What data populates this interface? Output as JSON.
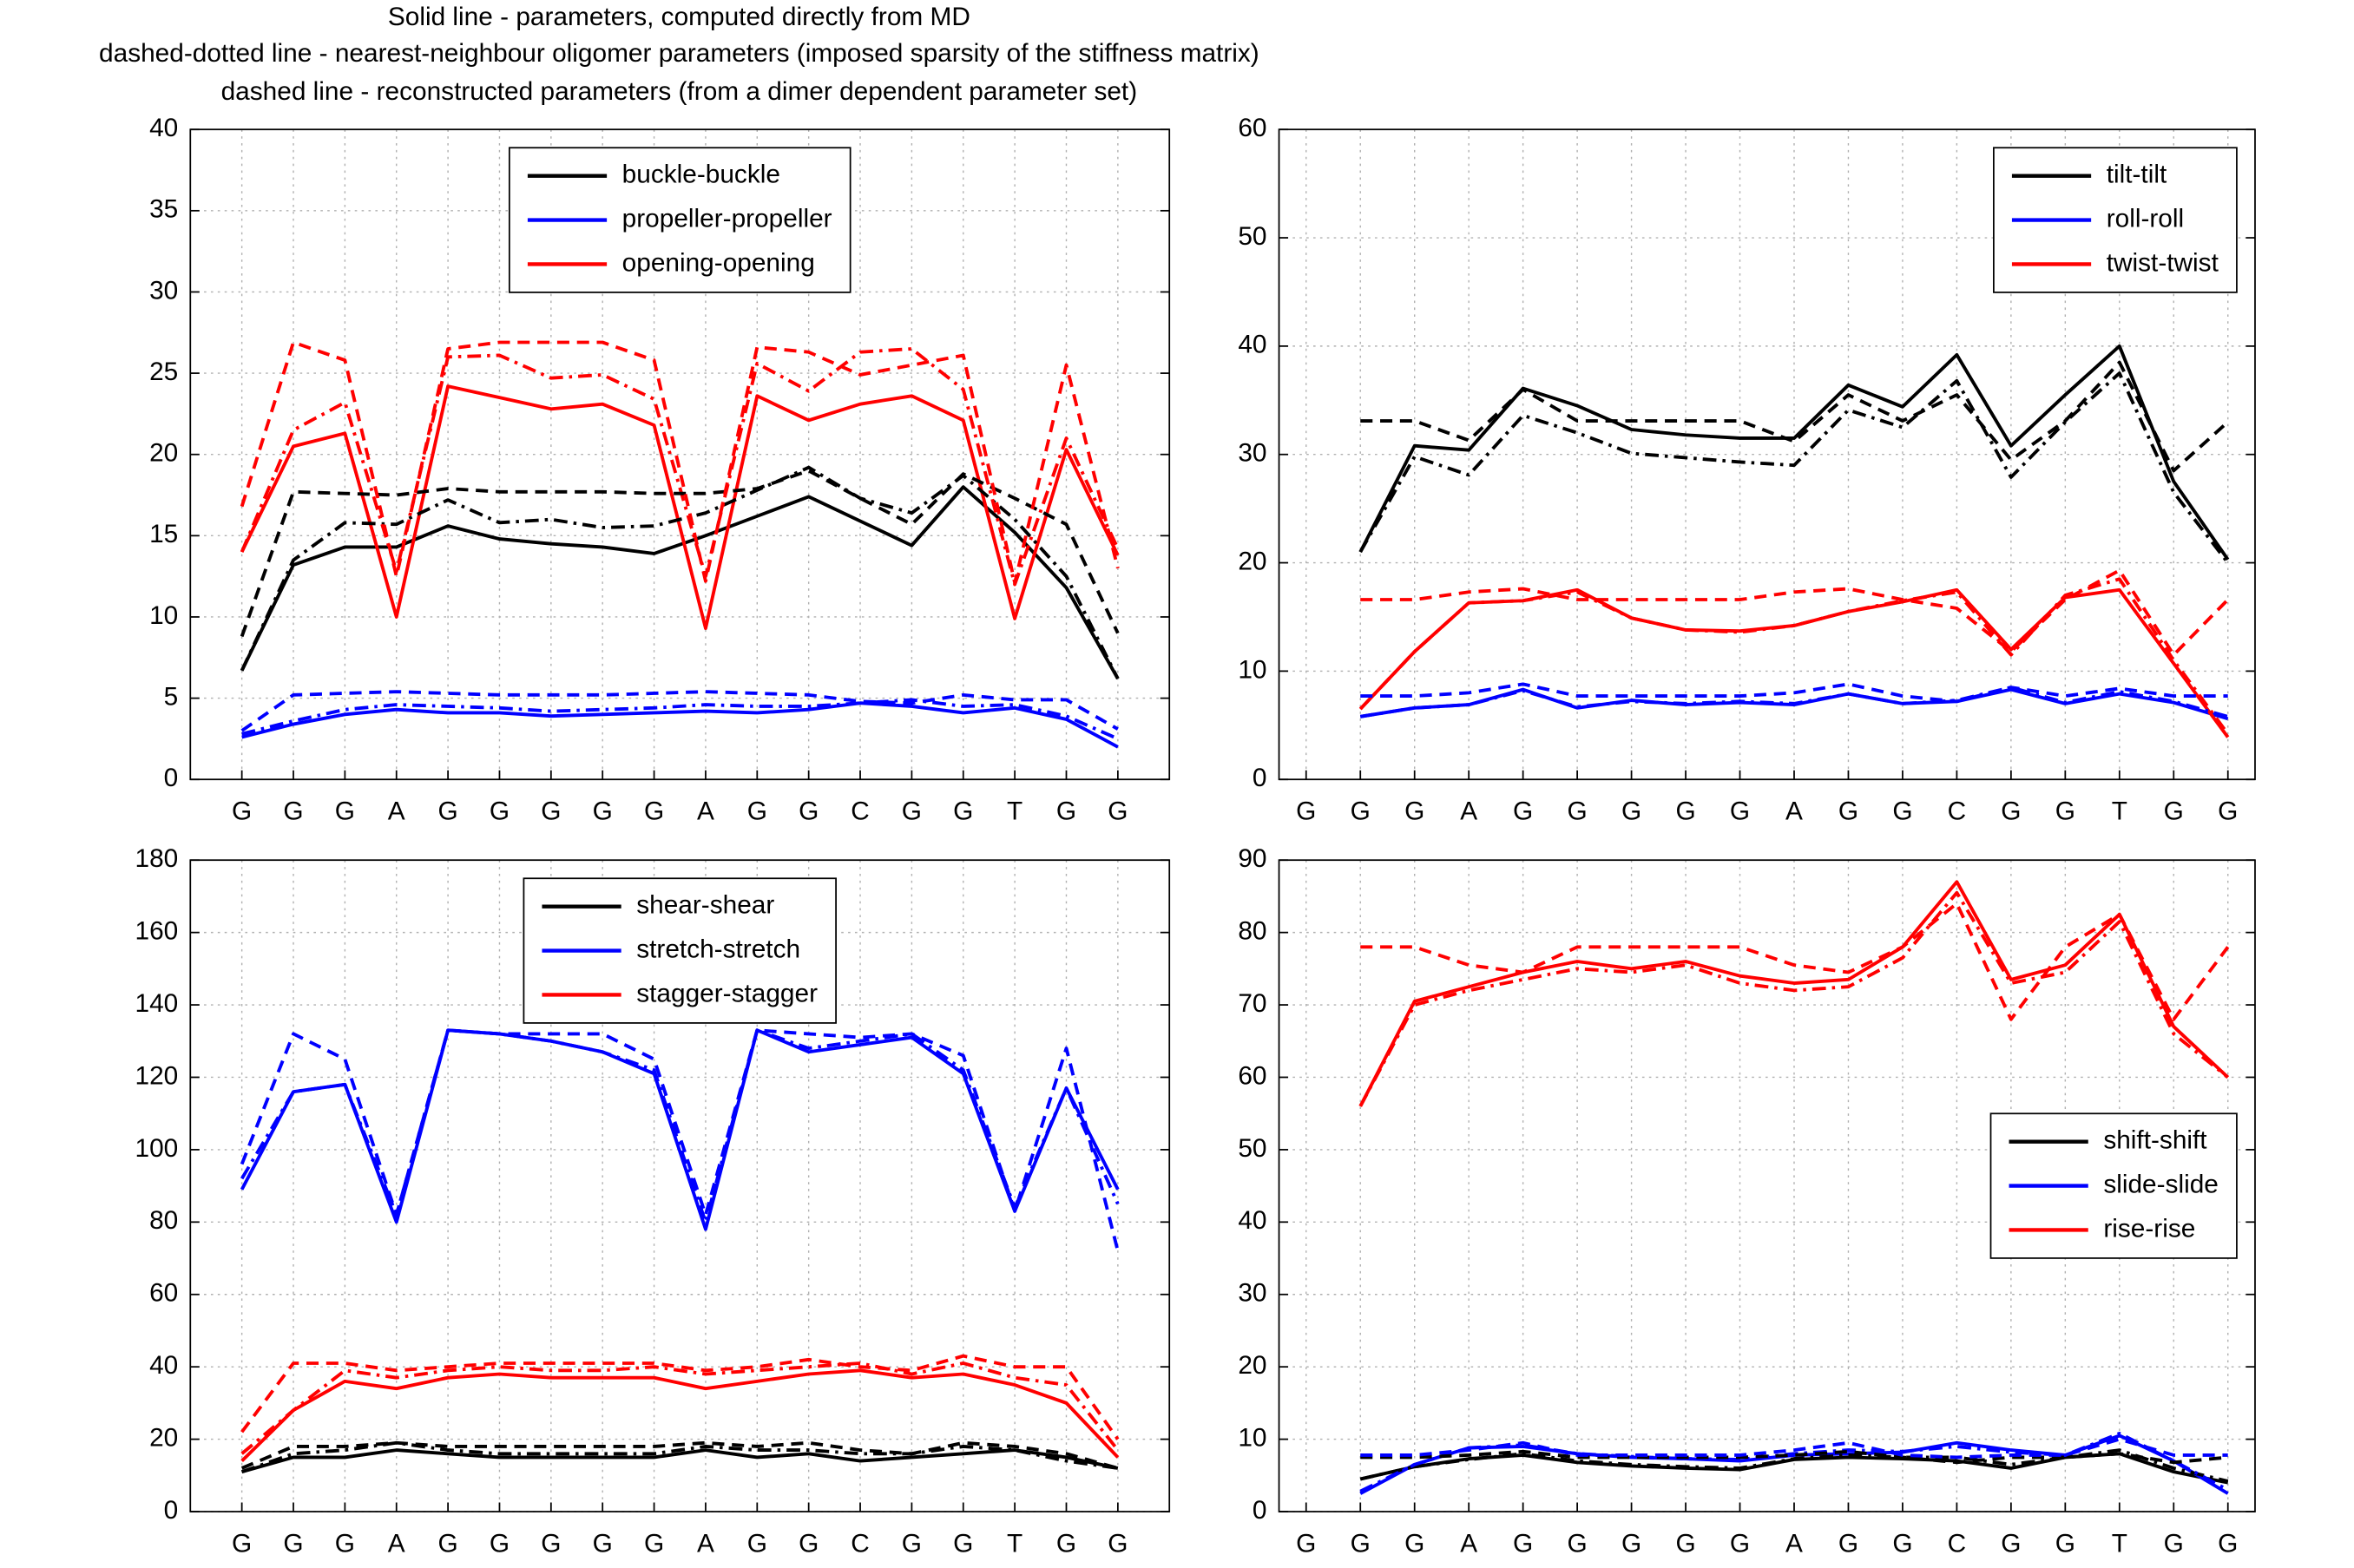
{
  "header": [
    "Solid line - parameters, computed directly from MD",
    "dashed-dotted line - nearest-neighbour oligomer parameters (imposed sparsity of the stiffness matrix)",
    "dashed line - reconstructed parameters (from a dimer dependent parameter set)"
  ],
  "chart_data": [
    {
      "type": "line",
      "legend": "upper center",
      "grid": true,
      "categories": [
        "G",
        "G",
        "G",
        "A",
        "G",
        "G",
        "G",
        "G",
        "G",
        "A",
        "G",
        "G",
        "C",
        "G",
        "G",
        "T",
        "G",
        "G"
      ],
      "ylim": [
        0,
        40
      ],
      "yticks": [
        0,
        5,
        10,
        15,
        20,
        25,
        30,
        35,
        40
      ],
      "series": [
        {
          "name": "buckle-buckle",
          "color": "#000000",
          "style": "solid",
          "values": [
            6.7,
            13.2,
            14.3,
            14.3,
            15.6,
            14.8,
            14.5,
            14.3,
            13.9,
            15.0,
            16.2,
            17.4,
            15.9,
            14.4,
            18.0,
            15.2,
            11.8,
            6.2
          ]
        },
        {
          "name": "propeller-propeller",
          "color": "#0000ff",
          "style": "solid",
          "values": [
            2.6,
            3.4,
            4.0,
            4.3,
            4.1,
            4.1,
            3.9,
            4.0,
            4.1,
            4.2,
            4.1,
            4.3,
            4.7,
            4.5,
            4.1,
            4.4,
            3.7,
            2.0
          ]
        },
        {
          "name": "opening-opening",
          "color": "#ff0000",
          "style": "solid",
          "values": [
            14.0,
            20.5,
            21.3,
            10.0,
            24.2,
            23.5,
            22.8,
            23.1,
            21.8,
            9.3,
            23.6,
            22.1,
            23.1,
            23.6,
            22.1,
            9.9,
            20.3,
            13.8
          ]
        },
        {
          "color": "#000000",
          "style": "dashdot",
          "values": [
            6.7,
            13.5,
            15.8,
            15.7,
            17.2,
            15.8,
            16.0,
            15.5,
            15.6,
            16.4,
            17.8,
            19.2,
            17.3,
            16.4,
            18.7,
            16.0,
            12.5,
            6.2
          ]
        },
        {
          "color": "#0000ff",
          "style": "dashdot",
          "values": [
            2.8,
            3.6,
            4.3,
            4.6,
            4.5,
            4.4,
            4.2,
            4.3,
            4.4,
            4.6,
            4.5,
            4.5,
            4.7,
            4.9,
            4.5,
            4.6,
            3.9,
            2.5
          ]
        },
        {
          "color": "#ff0000",
          "style": "dashdot",
          "values": [
            14.0,
            21.5,
            23.2,
            12.8,
            26.0,
            26.1,
            24.7,
            24.9,
            23.4,
            12.5,
            25.6,
            23.9,
            26.3,
            26.5,
            24.0,
            12.0,
            21.0,
            14.2
          ]
        },
        {
          "color": "#000000",
          "style": "dashed",
          "values": [
            8.8,
            17.7,
            17.6,
            17.5,
            17.9,
            17.7,
            17.7,
            17.7,
            17.6,
            17.6,
            17.9,
            19.0,
            17.3,
            15.7,
            18.8,
            17.3,
            15.7,
            9.0
          ]
        },
        {
          "color": "#0000ff",
          "style": "dashed",
          "values": [
            3.0,
            5.2,
            5.3,
            5.4,
            5.3,
            5.2,
            5.2,
            5.2,
            5.3,
            5.4,
            5.3,
            5.2,
            4.8,
            4.7,
            5.2,
            4.9,
            4.9,
            3.1
          ]
        },
        {
          "color": "#ff0000",
          "style": "dashed",
          "values": [
            16.8,
            26.9,
            25.8,
            12.5,
            26.5,
            26.9,
            26.9,
            26.9,
            25.8,
            12.2,
            26.6,
            26.3,
            24.9,
            25.5,
            26.1,
            12.1,
            25.5,
            13.0
          ]
        }
      ]
    },
    {
      "type": "line",
      "legend": "upper right",
      "grid": true,
      "categories": [
        "G",
        "G",
        "G",
        "A",
        "G",
        "G",
        "G",
        "G",
        "G",
        "A",
        "G",
        "G",
        "C",
        "G",
        "G",
        "T",
        "G",
        "G"
      ],
      "ylim": [
        0,
        60
      ],
      "yticks": [
        0,
        10,
        20,
        30,
        40,
        50,
        60
      ],
      "series": [
        {
          "name": "tilt-tilt",
          "color": "#000000",
          "style": "solid",
          "values": [
            null,
            21,
            30.8,
            30.4,
            36.1,
            34.5,
            32.3,
            31.8,
            31.5,
            31.5,
            36.4,
            34.4,
            39.2,
            30.8,
            35.5,
            40.0,
            27.5,
            20.3
          ]
        },
        {
          "name": "roll-roll",
          "color": "#0000ff",
          "style": "solid",
          "values": [
            null,
            5.8,
            6.6,
            6.9,
            8.3,
            6.6,
            7.3,
            6.9,
            7.1,
            6.9,
            7.9,
            7.0,
            7.2,
            8.3,
            7.0,
            7.9,
            7.1,
            5.6
          ]
        },
        {
          "name": "twist-twist",
          "color": "#ff0000",
          "style": "solid",
          "values": [
            null,
            6.5,
            11.8,
            16.3,
            16.5,
            17.5,
            14.9,
            13.8,
            13.7,
            14.2,
            15.5,
            16.4,
            17.5,
            12.0,
            16.8,
            17.5,
            10.7,
            3.9
          ]
        },
        {
          "color": "#000000",
          "style": "dashdot",
          "values": [
            null,
            21,
            29.8,
            28.1,
            33.6,
            32.0,
            30.1,
            29.7,
            29.3,
            29.0,
            34.1,
            32.5,
            36.8,
            27.9,
            33.0,
            37.5,
            26.5,
            20.0
          ]
        },
        {
          "color": "#0000ff",
          "style": "dashdot",
          "values": [
            null,
            5.8,
            6.6,
            6.9,
            8.2,
            6.7,
            7.2,
            7.0,
            7.2,
            7.0,
            7.9,
            7.0,
            7.3,
            8.5,
            7.1,
            8.1,
            7.2,
            5.8
          ]
        },
        {
          "color": "#ff0000",
          "style": "dashdot",
          "values": [
            null,
            6.5,
            11.8,
            16.3,
            16.5,
            17.3,
            14.9,
            13.8,
            13.6,
            14.2,
            15.5,
            16.5,
            17.3,
            11.5,
            17.0,
            18.5,
            11.0,
            4.2
          ]
        },
        {
          "color": "#000000",
          "style": "dashed",
          "values": [
            null,
            33.1,
            33.1,
            31.3,
            36.0,
            33.1,
            33.1,
            33.1,
            33.1,
            31.2,
            35.5,
            33.1,
            35.5,
            29.5,
            33.1,
            38.5,
            28.5,
            33.0
          ]
        },
        {
          "color": "#0000ff",
          "style": "dashed",
          "values": [
            null,
            7.7,
            7.7,
            8.0,
            8.8,
            7.7,
            7.7,
            7.7,
            7.7,
            8.0,
            8.8,
            7.7,
            7.2,
            8.5,
            7.7,
            8.4,
            7.7,
            7.7
          ]
        },
        {
          "color": "#ff0000",
          "style": "dashed",
          "values": [
            null,
            16.6,
            16.6,
            17.3,
            17.6,
            16.6,
            16.6,
            16.6,
            16.6,
            17.3,
            17.6,
            16.6,
            15.8,
            11.8,
            16.6,
            19.3,
            11.5,
            16.6
          ]
        }
      ]
    },
    {
      "type": "line",
      "legend": "upper center",
      "grid": true,
      "categories": [
        "G",
        "G",
        "G",
        "A",
        "G",
        "G",
        "G",
        "G",
        "G",
        "A",
        "G",
        "G",
        "C",
        "G",
        "G",
        "T",
        "G",
        "G"
      ],
      "ylim": [
        0,
        180
      ],
      "yticks": [
        0,
        20,
        40,
        60,
        80,
        100,
        120,
        140,
        160,
        180
      ],
      "series": [
        {
          "name": "shear-shear",
          "color": "#000000",
          "style": "solid",
          "values": [
            11,
            15,
            15,
            17,
            16,
            15,
            15,
            15,
            15,
            17,
            15,
            16,
            14,
            15,
            16,
            17,
            15,
            12
          ]
        },
        {
          "name": "stretch-stretch",
          "color": "#0000ff",
          "style": "solid",
          "values": [
            89,
            116,
            118,
            80,
            133,
            132,
            130,
            127,
            121,
            78,
            133,
            127,
            129,
            131,
            121,
            83,
            117,
            89
          ]
        },
        {
          "name": "stagger-stagger",
          "color": "#ff0000",
          "style": "solid",
          "values": [
            14,
            28,
            36,
            34,
            37,
            38,
            37,
            37,
            37,
            34,
            36,
            38,
            39,
            37,
            38,
            35,
            30,
            15
          ]
        },
        {
          "color": "#000000",
          "style": "dashdot",
          "values": [
            11,
            16,
            17,
            19,
            17,
            16,
            16,
            16,
            16,
            18,
            17,
            17,
            16,
            16,
            18,
            17,
            14,
            12
          ]
        },
        {
          "color": "#0000ff",
          "style": "dashdot",
          "values": [
            92,
            116,
            118,
            82,
            133,
            132,
            130,
            127,
            122,
            80,
            133,
            128,
            130,
            132,
            122,
            84,
            117,
            85
          ]
        },
        {
          "color": "#ff0000",
          "style": "dashdot",
          "values": [
            16,
            28,
            39,
            37,
            39,
            40,
            39,
            39,
            40,
            38,
            39,
            40,
            41,
            38,
            41,
            37,
            35,
            17
          ]
        },
        {
          "color": "#000000",
          "style": "dashed",
          "values": [
            12,
            18,
            18,
            19,
            18,
            18,
            18,
            18,
            18,
            19,
            18,
            19,
            17,
            16,
            19,
            18,
            16,
            12
          ]
        },
        {
          "color": "#0000ff",
          "style": "dashed",
          "values": [
            96,
            132,
            125,
            82,
            133,
            132,
            132,
            132,
            125,
            82,
            133,
            132,
            131,
            132,
            126,
            83,
            128,
            72
          ]
        },
        {
          "color": "#ff0000",
          "style": "dashed",
          "values": [
            22,
            41,
            41,
            39,
            40,
            41,
            41,
            41,
            41,
            39,
            40,
            42,
            40,
            39,
            43,
            40,
            40,
            20
          ]
        }
      ]
    },
    {
      "type": "line",
      "legend": "center right",
      "grid": true,
      "categories": [
        "G",
        "G",
        "G",
        "A",
        "G",
        "G",
        "G",
        "G",
        "G",
        "A",
        "G",
        "G",
        "C",
        "G",
        "G",
        "T",
        "G",
        "G"
      ],
      "ylim": [
        0,
        90
      ],
      "yticks": [
        0,
        10,
        20,
        30,
        40,
        50,
        60,
        70,
        80,
        90
      ],
      "series": [
        {
          "name": "shift-shift",
          "color": "#000000",
          "style": "solid",
          "values": [
            null,
            4.5,
            6.2,
            7.3,
            7.8,
            6.8,
            6.3,
            6.0,
            5.8,
            7.2,
            7.5,
            7.3,
            7.0,
            6.0,
            7.5,
            8.0,
            5.5,
            4.0
          ]
        },
        {
          "name": "slide-slide",
          "color": "#0000ff",
          "style": "solid",
          "values": [
            null,
            2.5,
            6.5,
            8.8,
            9.0,
            8.0,
            7.5,
            7.3,
            7.0,
            7.8,
            8.0,
            8.2,
            9.5,
            8.5,
            7.8,
            10.5,
            7.0,
            2.5
          ]
        },
        {
          "name": "rise-rise",
          "color": "#ff0000",
          "style": "solid",
          "values": [
            null,
            56,
            70.5,
            72.5,
            74.5,
            76,
            75,
            76,
            74,
            73,
            73.5,
            78,
            87,
            73.5,
            75.5,
            82.5,
            67,
            60
          ]
        },
        {
          "color": "#000000",
          "style": "dashdot",
          "values": [
            null,
            4.5,
            6.2,
            7.2,
            8.0,
            7.0,
            6.5,
            6.2,
            6.0,
            7.3,
            7.8,
            7.5,
            7.5,
            6.5,
            7.5,
            8.5,
            6.0,
            4.2
          ]
        },
        {
          "color": "#0000ff",
          "style": "dashdot",
          "values": [
            null,
            2.8,
            6.5,
            8.8,
            9.2,
            8.0,
            7.6,
            7.3,
            7.2,
            8.0,
            8.5,
            8.3,
            9.0,
            8.2,
            7.8,
            10.8,
            7.0,
            3.0
          ]
        },
        {
          "color": "#ff0000",
          "style": "dashdot",
          "values": [
            null,
            56,
            70,
            72,
            73.5,
            75,
            74.5,
            75.5,
            73,
            72,
            72.5,
            76.5,
            85.5,
            73,
            74.5,
            81.5,
            66,
            60
          ]
        },
        {
          "color": "#000000",
          "style": "dashed",
          "values": [
            null,
            7.5,
            7.5,
            7.8,
            8.3,
            7.5,
            7.5,
            7.5,
            7.5,
            7.8,
            8.3,
            7.5,
            6.8,
            7.5,
            7.5,
            8.0,
            6.8,
            7.5
          ]
        },
        {
          "color": "#0000ff",
          "style": "dashed",
          "values": [
            null,
            7.8,
            7.8,
            8.5,
            9.5,
            7.8,
            7.8,
            7.8,
            7.8,
            8.5,
            9.5,
            7.8,
            7.5,
            7.8,
            7.8,
            10.0,
            7.8,
            7.8
          ]
        },
        {
          "color": "#ff0000",
          "style": "dashed",
          "values": [
            null,
            78,
            78,
            75.5,
            74.5,
            78,
            78,
            78,
            78,
            75.5,
            74.5,
            78,
            84,
            68,
            78,
            82.5,
            68,
            78
          ]
        }
      ]
    }
  ]
}
